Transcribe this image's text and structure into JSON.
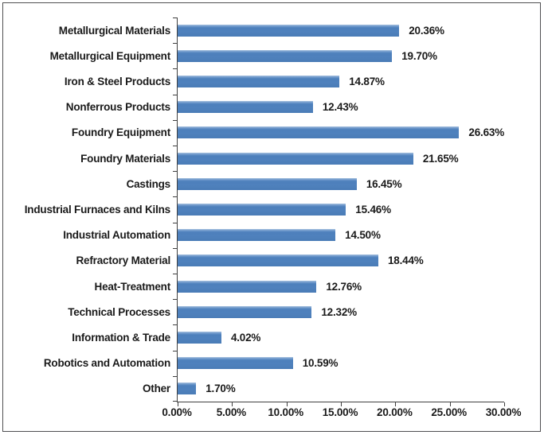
{
  "chart_data": {
    "type": "bar",
    "orientation": "horizontal",
    "title": "",
    "xlabel": "",
    "ylabel": "",
    "xlim": [
      0,
      30
    ],
    "grid": false,
    "legend": "none",
    "categories": [
      "Metallurgical Materials",
      "Metallurgical Equipment",
      "Iron & Steel Products",
      "Nonferrous Products",
      "Foundry Equipment",
      "Foundry Materials",
      "Castings",
      "Industrial Furnaces and Kilns",
      "Industrial Automation",
      "Refractory Material",
      "Heat-Treatment",
      "Technical Processes",
      "Information & Trade",
      "Robotics and Automation",
      "Other"
    ],
    "values": [
      20.36,
      19.7,
      14.87,
      12.43,
      26.63,
      21.65,
      16.45,
      15.46,
      14.5,
      18.44,
      12.76,
      12.32,
      4.02,
      10.59,
      1.7
    ],
    "data_labels": [
      "20.36%",
      "19.70%",
      "14.87%",
      "12.43%",
      "26.63%",
      "21.65%",
      "16.45%",
      "15.46%",
      "14.50%",
      "18.44%",
      "12.76%",
      "12.32%",
      "4.02%",
      "10.59%",
      "1.70%"
    ],
    "x_ticks": [
      "0.00%",
      "5.00%",
      "10.00%",
      "15.00%",
      "20.00%",
      "25.00%",
      "30.00%"
    ],
    "colors": {
      "bar": "#4f81bd",
      "bar_highlight": "#a9c3df",
      "axis": "#3f3f3f",
      "text": "#1a1a1a",
      "frame_border": "#4f4f51",
      "background": "#ffffff"
    }
  }
}
